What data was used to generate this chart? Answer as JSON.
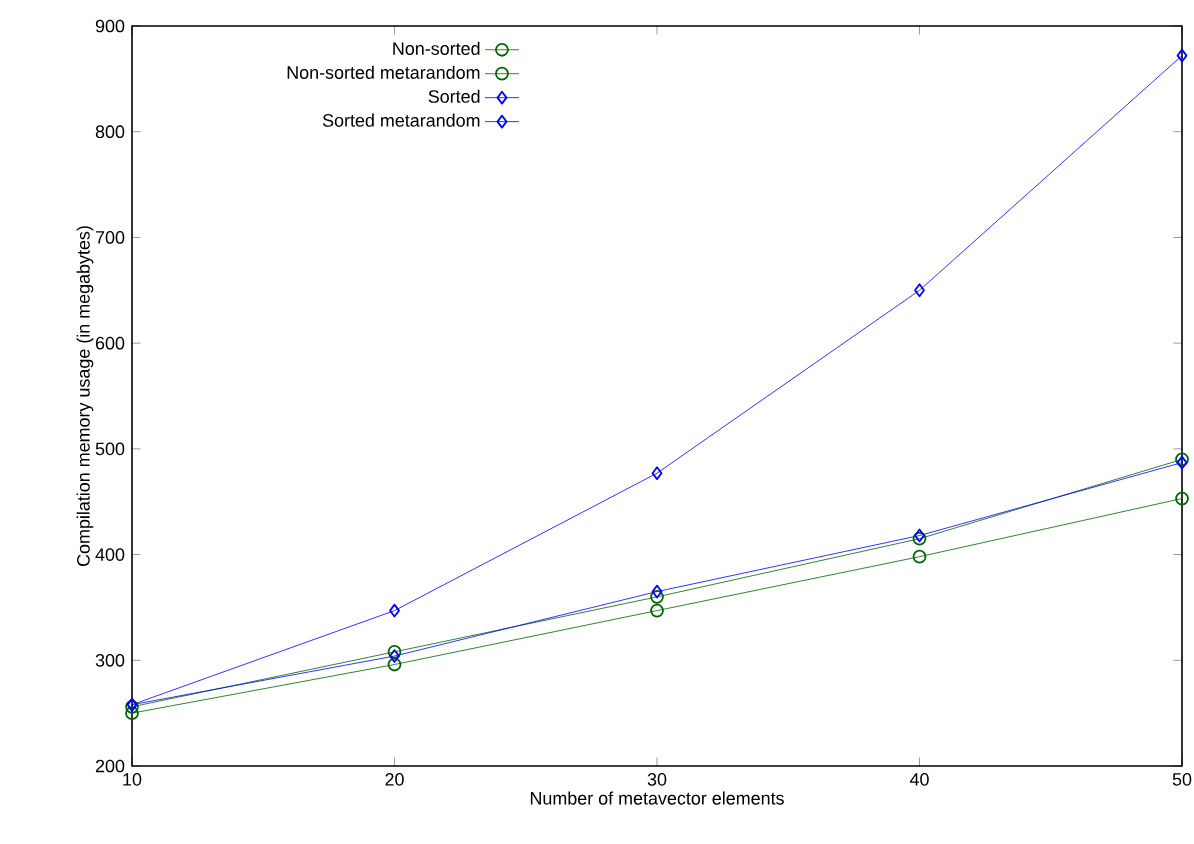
{
  "chart_data": {
    "type": "line",
    "xlabel": "Number of metavector elements",
    "ylabel": "Compilation memory usage (in megabytes)",
    "x": [
      10,
      20,
      30,
      40,
      50
    ],
    "xlim": [
      10,
      50
    ],
    "xticks": [
      10,
      20,
      30,
      40,
      50
    ],
    "ylim": [
      200,
      900
    ],
    "yticks": [
      200,
      300,
      400,
      500,
      600,
      700,
      800,
      900
    ],
    "legend": "top left",
    "grid": false,
    "line_style": "solid",
    "series": [
      {
        "name": "Non-sorted",
        "color": "#006400",
        "marker": "circle",
        "values": [
          250,
          296,
          347,
          398,
          453
        ]
      },
      {
        "name": "Non-sorted metarandom",
        "color": "#006400",
        "marker": "circle",
        "values": [
          256,
          308,
          360,
          415,
          490
        ]
      },
      {
        "name": "Sorted",
        "color": "#0000ff",
        "marker": "diamond",
        "values": [
          258,
          347,
          477,
          650,
          872
        ]
      },
      {
        "name": "Sorted metarandom",
        "color": "#0000ff",
        "marker": "diamond",
        "values": [
          258,
          304,
          365,
          418,
          487
        ]
      }
    ]
  }
}
